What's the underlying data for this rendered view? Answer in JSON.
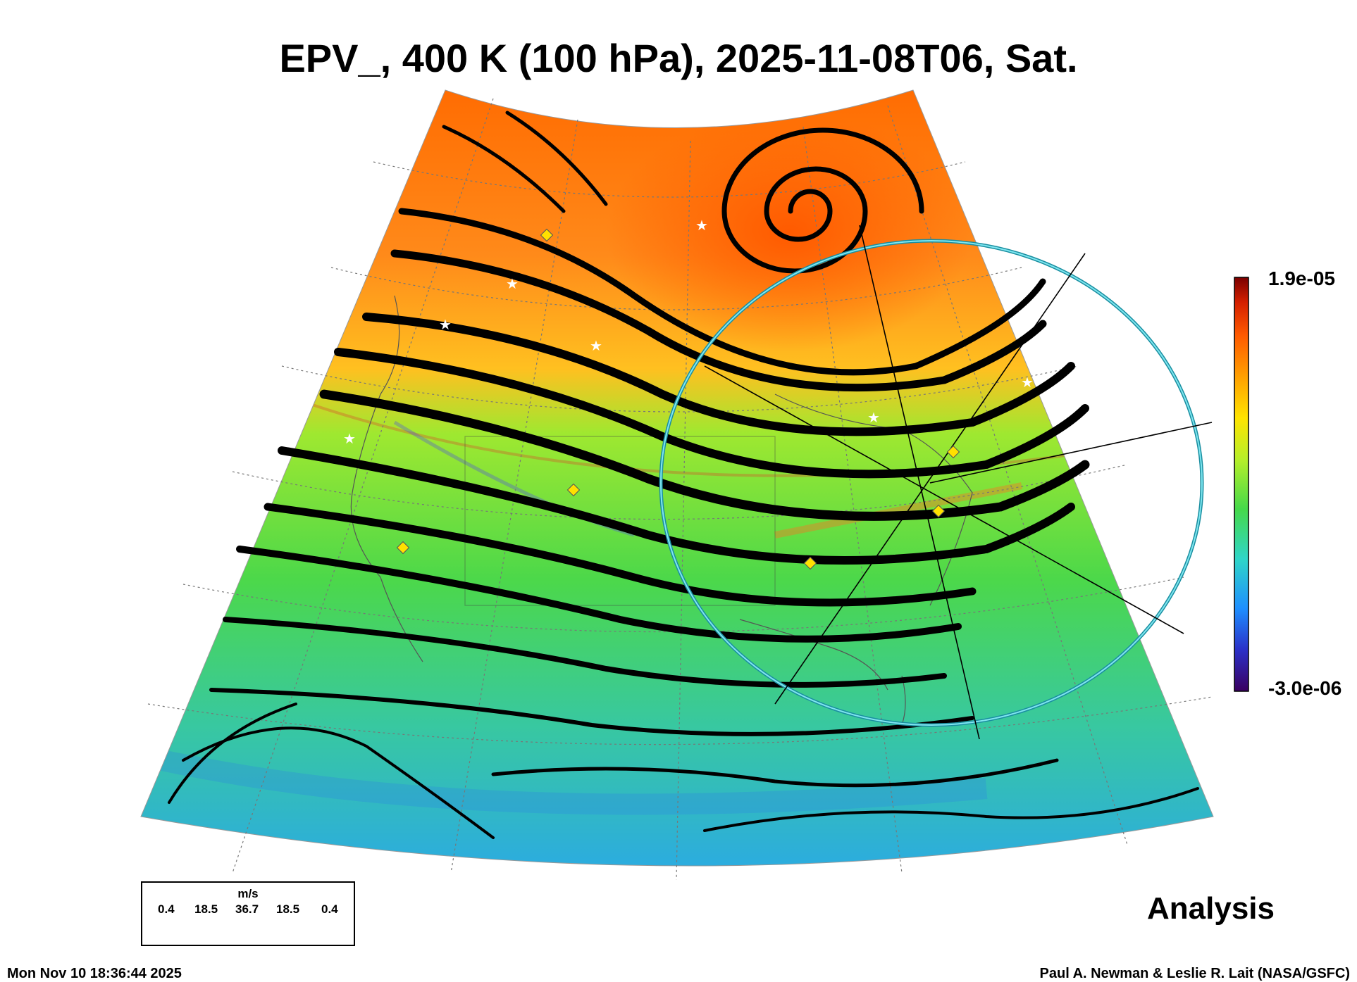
{
  "title": "EPV_, 400 K (100 hPa), 2025-11-08T06, Sat.",
  "colorbar": {
    "max_label": "1.9e-05",
    "min_label": "-3.0e-06",
    "max_value": 1.9e-05,
    "min_value": -3e-06,
    "colors": [
      "#3a0060",
      "#2b30c8",
      "#1e8fff",
      "#2fd6c8",
      "#45d94a",
      "#b6ef2a",
      "#ffe400",
      "#ffa000",
      "#ff5a00",
      "#d42000",
      "#7a0000"
    ]
  },
  "legend": {
    "unit": "m/s",
    "values": [
      "0.4",
      "18.5",
      "36.7",
      "18.5",
      "0.4"
    ]
  },
  "panel_label": "Analysis",
  "timestamp": "Mon Nov 10 18:36:44 2025",
  "credit": "Paul A. Newman & Leslie R. Lait (NASA/GSFC)",
  "colors": {
    "high_epv": "#ff7a10",
    "mid_epv": "#6fe04a",
    "low_epv": "#2fb8e0",
    "streamline": "#000000",
    "circle": "#22bfd6",
    "marker_diamond": "#ffe000",
    "marker_star": "#ffffff"
  }
}
